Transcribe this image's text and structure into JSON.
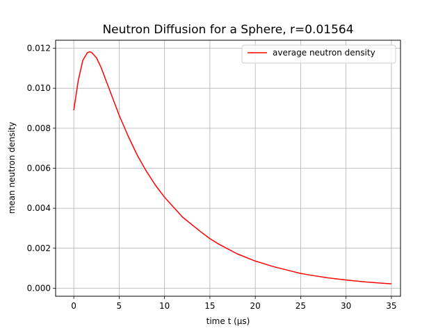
{
  "chart_data": {
    "type": "line",
    "title": "Neutron Diffusion for a Sphere, r=0.01564",
    "xlabel": "time t (µs)",
    "ylabel": "mean neutron density",
    "xlim": [
      -2,
      36
    ],
    "ylim": [
      -0.0004,
      0.0124
    ],
    "x_ticks": [
      0,
      5,
      10,
      15,
      20,
      25,
      30,
      35
    ],
    "y_ticks": [
      0.0,
      0.002,
      0.004,
      0.006,
      0.008,
      0.01,
      0.012
    ],
    "x_tick_labels": [
      "0",
      "5",
      "10",
      "15",
      "20",
      "25",
      "30",
      "35"
    ],
    "y_tick_labels": [
      "0.000",
      "0.002",
      "0.004",
      "0.006",
      "0.008",
      "0.010",
      "0.012"
    ],
    "grid": true,
    "legend_position": "upper right",
    "series": [
      {
        "name": "average neutron density",
        "color": "#ff0000",
        "x": [
          0,
          0.5,
          1.0,
          1.5,
          1.75,
          2.0,
          2.5,
          3.0,
          4.0,
          5.0,
          6.0,
          7.0,
          8.0,
          9.0,
          10.0,
          12.0,
          14.0,
          15.0,
          16.0,
          18.0,
          20.0,
          22.0,
          24.0,
          25.0,
          26.0,
          28.0,
          30.0,
          32.0,
          34.0,
          35.0
        ],
        "y": [
          0.0089,
          0.0104,
          0.0114,
          0.01178,
          0.01182,
          0.01178,
          0.01152,
          0.01105,
          0.00985,
          0.00865,
          0.0076,
          0.00665,
          0.00585,
          0.00515,
          0.00455,
          0.00355,
          0.00282,
          0.00248,
          0.0022,
          0.00172,
          0.00136,
          0.00108,
          0.00085,
          0.00074,
          0.00066,
          0.00052,
          0.00041,
          0.00032,
          0.00025,
          0.00022
        ]
      }
    ]
  }
}
